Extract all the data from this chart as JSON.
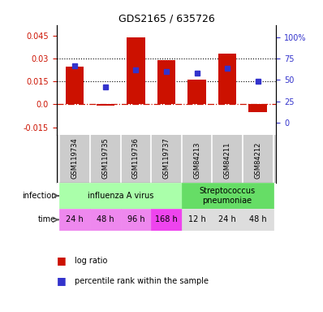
{
  "title": "GDS2165 / 635726",
  "samples": [
    "GSM119734",
    "GSM119735",
    "GSM119736",
    "GSM119737",
    "GSM84213",
    "GSM84211",
    "GSM84212"
  ],
  "log_ratio": [
    0.0245,
    -0.001,
    0.044,
    0.029,
    0.016,
    0.033,
    -0.005
  ],
  "percentile_rank_raw": [
    66,
    42,
    62,
    60,
    58,
    64,
    48
  ],
  "bar_color": "#cc1100",
  "dot_color": "#3333cc",
  "ylim_left": [
    -0.02,
    0.052
  ],
  "ylim_right": [
    -14.3,
    114.3
  ],
  "yticks_left": [
    -0.015,
    0.0,
    0.015,
    0.03,
    0.045
  ],
  "yticks_right_vals": [
    0,
    25,
    50,
    75,
    100
  ],
  "yticks_right_labels": [
    "0",
    "25",
    "50",
    "75",
    "100%"
  ],
  "hline_dotted": [
    0.015,
    0.03
  ],
  "infection_groups": [
    {
      "label": "influenza A virus",
      "start": 0,
      "end": 4,
      "color": "#aaffaa"
    },
    {
      "label": "Streptococcus\npneumoniae",
      "start": 4,
      "end": 7,
      "color": "#66dd66"
    }
  ],
  "time_labels": [
    "24 h",
    "48 h",
    "96 h",
    "168 h",
    "12 h",
    "24 h",
    "48 h"
  ],
  "time_colors": [
    "#ee88ee",
    "#ee88ee",
    "#ee88ee",
    "#ee44ee",
    "#dddddd",
    "#dddddd",
    "#dddddd"
  ],
  "infection_label": "infection",
  "time_label": "time",
  "legend_log": "log ratio",
  "legend_pct": "percentile rank within the sample",
  "bar_width": 0.6,
  "sample_bg": "#cccccc"
}
